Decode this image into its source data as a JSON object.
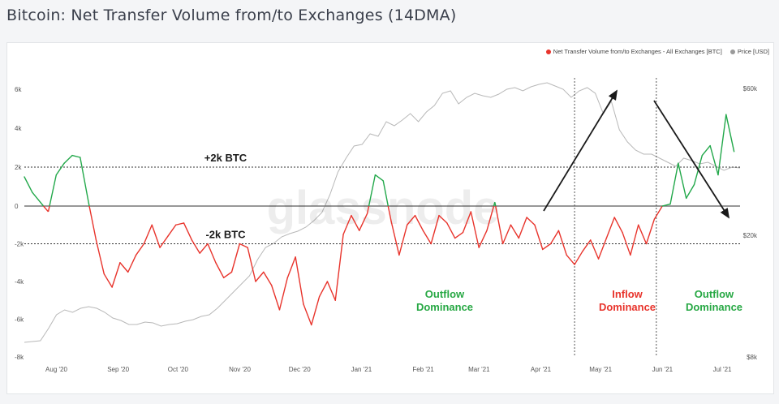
{
  "page": {
    "title": "Bitcoin: Net Transfer Volume from/to Exchanges (14DMA)"
  },
  "legend": {
    "net_label": "Net Transfer Volume from/to Exchanges - All Exchanges [BTC]",
    "price_label": "Price [USD]"
  },
  "colors": {
    "inflow": "#e8342c",
    "outflow": "#22a84a",
    "price": "#b8b8b8",
    "annotation_green": "#27a844",
    "annotation_red": "#e8342c"
  },
  "watermark": "glassnode",
  "chart_data": {
    "type": "line",
    "title": "Bitcoin: Net Transfer Volume from/to Exchanges (14DMA)",
    "x_ticks": [
      "Aug '20",
      "Sep '20",
      "Oct '20",
      "Nov '20",
      "Dec '20",
      "Jan '21",
      "Feb '21",
      "Mar '21",
      "Apr '21",
      "May '21",
      "Jun '21",
      "Jul '21"
    ],
    "y_left": {
      "label": "",
      "ylim": [
        -8000,
        7000
      ],
      "ticks": [
        "6k",
        "4k",
        "2k",
        "0",
        "-2k",
        "-4k",
        "-6k",
        "-8k"
      ]
    },
    "y_right": {
      "label": "",
      "scale": "log",
      "ticks": [
        "$60k",
        "$20k",
        "$8k"
      ]
    },
    "reference_lines": [
      {
        "value": 2000,
        "label": "+2k BTC"
      },
      {
        "value": -2000,
        "label": "-2k BTC"
      }
    ],
    "series": [
      {
        "name": "Net Transfer Volume from/to Exchanges - All Exchanges [BTC]",
        "axis": "left",
        "x": [
          "2020-07-20",
          "2020-07-24",
          "2020-07-28",
          "2020-08-01",
          "2020-08-05",
          "2020-08-09",
          "2020-08-13",
          "2020-08-17",
          "2020-08-21",
          "2020-08-25",
          "2020-08-29",
          "2020-09-02",
          "2020-09-06",
          "2020-09-10",
          "2020-09-14",
          "2020-09-18",
          "2020-09-22",
          "2020-09-26",
          "2020-09-30",
          "2020-10-04",
          "2020-10-08",
          "2020-10-12",
          "2020-10-16",
          "2020-10-20",
          "2020-10-24",
          "2020-10-28",
          "2020-11-01",
          "2020-11-05",
          "2020-11-09",
          "2020-11-13",
          "2020-11-17",
          "2020-11-21",
          "2020-11-25",
          "2020-11-29",
          "2020-12-03",
          "2020-12-07",
          "2020-12-11",
          "2020-12-15",
          "2020-12-19",
          "2020-12-23",
          "2020-12-27",
          "2020-12-31",
          "2021-01-04",
          "2021-01-08",
          "2021-01-12",
          "2021-01-16",
          "2021-01-20",
          "2021-01-24",
          "2021-01-28",
          "2021-02-01",
          "2021-02-05",
          "2021-02-09",
          "2021-02-13",
          "2021-02-17",
          "2021-02-21",
          "2021-02-25",
          "2021-03-01",
          "2021-03-05",
          "2021-03-09",
          "2021-03-13",
          "2021-03-17",
          "2021-03-21",
          "2021-03-25",
          "2021-03-29",
          "2021-04-02",
          "2021-04-06",
          "2021-04-10",
          "2021-04-14",
          "2021-04-18",
          "2021-04-22",
          "2021-04-26",
          "2021-04-30",
          "2021-05-04",
          "2021-05-08",
          "2021-05-12",
          "2021-05-16",
          "2021-05-20",
          "2021-05-24",
          "2021-05-28",
          "2021-06-01",
          "2021-06-05",
          "2021-06-09",
          "2021-06-13",
          "2021-06-17",
          "2021-06-21",
          "2021-06-25",
          "2021-06-29",
          "2021-07-03",
          "2021-07-07",
          "2021-07-11"
        ],
        "y": [
          1500,
          700,
          200,
          -300,
          1600,
          2200,
          2600,
          2500,
          300,
          -1800,
          -3600,
          -4300,
          -3000,
          -3500,
          -2600,
          -2000,
          -1000,
          -2200,
          -1600,
          -1000,
          -900,
          -1800,
          -2500,
          -2000,
          -3000,
          -3800,
          -3500,
          -2000,
          -2200,
          -4000,
          -3500,
          -4200,
          -5500,
          -3800,
          -2700,
          -5200,
          -6300,
          -4800,
          -4000,
          -5000,
          -1500,
          -500,
          -1300,
          -400,
          1600,
          1300,
          -800,
          -2600,
          -1000,
          -500,
          -1300,
          -2000,
          -500,
          -900,
          -1700,
          -1400,
          -300,
          -2200,
          -1300,
          200,
          -2000,
          -1000,
          -1700,
          -600,
          -1000,
          -2300,
          -2000,
          -1300,
          -2600,
          -3100,
          -2400,
          -1800,
          -2800,
          -1700,
          -600,
          -1400,
          -2600,
          -1000,
          -2000,
          -700,
          0,
          100,
          2200,
          400,
          1100,
          2600,
          3100,
          1600,
          4700,
          2800
        ],
        "_note": ""
      }
    ]
  },
  "annotations": {
    "outflow_1": [
      "Outflow",
      "Dominance"
    ],
    "inflow": [
      "Inflow",
      "Dominance"
    ],
    "outflow_2": [
      "Outflow",
      "Dominance"
    ]
  }
}
